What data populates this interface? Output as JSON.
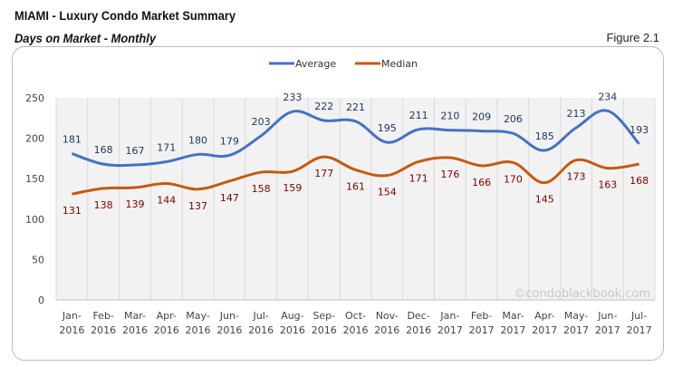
{
  "header": {
    "title": "MIAMI - Luxury Condo Market Summary",
    "subtitle": "Days on Market - Monthly",
    "figure": "Figure 2.1"
  },
  "watermark": "©condoblackbook.com",
  "chart_data": {
    "type": "line",
    "categories": [
      [
        "Jan-",
        "2016"
      ],
      [
        "Feb-",
        "2016"
      ],
      [
        "Mar-",
        "2016"
      ],
      [
        "Apr-",
        "2016"
      ],
      [
        "May-",
        "2016"
      ],
      [
        "Jun-",
        "2016"
      ],
      [
        "Jul-",
        "2016"
      ],
      [
        "Aug-",
        "2016"
      ],
      [
        "Sep-",
        "2016"
      ],
      [
        "Oct-",
        "2016"
      ],
      [
        "Nov-",
        "2016"
      ],
      [
        "Dec-",
        "2016"
      ],
      [
        "Jan-",
        "2017"
      ],
      [
        "Feb-",
        "2017"
      ],
      [
        "Mar-",
        "2017"
      ],
      [
        "Apr-",
        "2017"
      ],
      [
        "May-",
        "2017"
      ],
      [
        "Jun-",
        "2017"
      ],
      [
        "Jul-",
        "2017"
      ]
    ],
    "series": [
      {
        "name": "Average",
        "color": "#4472c4",
        "label_color": "#1f3864",
        "values": [
          181,
          168,
          167,
          171,
          180,
          179,
          203,
          233,
          222,
          221,
          195,
          211,
          210,
          209,
          206,
          185,
          213,
          234,
          193
        ]
      },
      {
        "name": "Median",
        "color": "#c55a11",
        "label_color": "#7f0000",
        "values": [
          131,
          138,
          139,
          144,
          137,
          147,
          158,
          159,
          177,
          161,
          154,
          171,
          176,
          166,
          170,
          145,
          173,
          163,
          168
        ]
      }
    ],
    "ylim": [
      0,
      250
    ],
    "yticks": [
      0,
      50,
      100,
      150,
      200,
      250
    ],
    "grid": "vertical",
    "legend": "top-center",
    "smooth": true
  }
}
